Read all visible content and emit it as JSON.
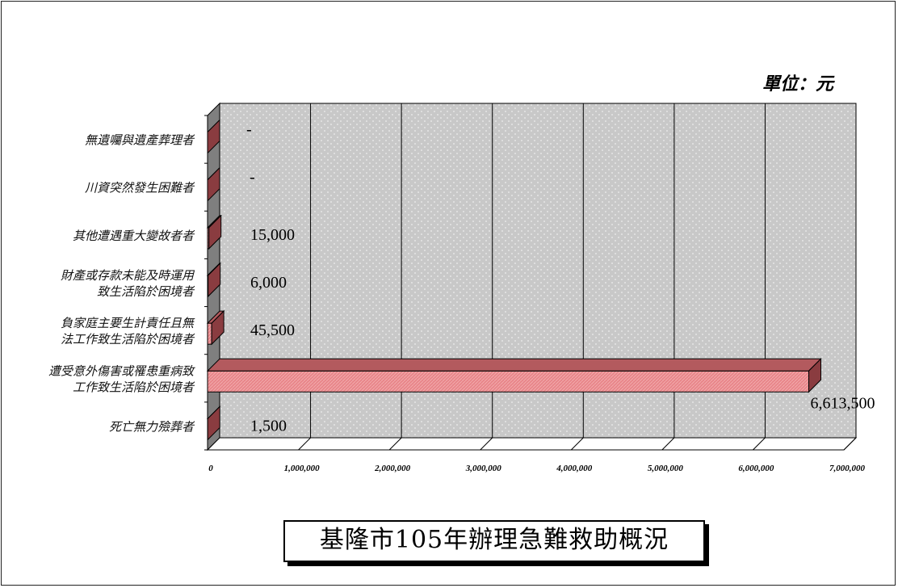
{
  "unit_label": "單位：元",
  "title": "基隆市105年辦理急難救助概況",
  "chart_data": {
    "type": "bar",
    "orientation": "horizontal",
    "three_d": true,
    "categories": [
      "無遺囑與遺產葬理者",
      "川資突然發生困難者",
      "其他遭遇重大變故者者",
      "財產或存款未能及時運用致生活陷於困境者",
      "負家庭主要生計責任且無法工作致生活陷於困境者",
      "遭受意外傷害或罹患重病致工作致生活陷於困境者",
      "死亡無力殮葬者"
    ],
    "category_label_lines": [
      [
        "無遺囑與遺產葬理者"
      ],
      [
        "川資突然發生困難者"
      ],
      [
        "其他遭遇重大變故者者"
      ],
      [
        "財產或存款未能及時運用",
        "致生活陷於困境者"
      ],
      [
        "負家庭主要生計責任且無",
        "法工作致生活陷於困境者"
      ],
      [
        "遭受意外傷害或罹患重病致",
        "工作致生活陷於困境者"
      ],
      [
        "死亡無力殮葬者"
      ]
    ],
    "values": [
      0,
      0,
      15000,
      6000,
      45500,
      6613500,
      1500
    ],
    "value_labels": [
      "-",
      "-",
      "15,000",
      "6,000",
      "45,500",
      "6,613,500",
      "1,500"
    ],
    "xlim": [
      0,
      7000000
    ],
    "x_ticks": [
      0,
      1000000,
      2000000,
      3000000,
      4000000,
      5000000,
      6000000,
      7000000
    ],
    "x_tick_labels": [
      "0",
      "1,000,000",
      "2,000,000",
      "3,000,000",
      "4,000,000",
      "5,000,000",
      "6,000,000",
      "7,000,000"
    ],
    "grid": true,
    "legend": "none",
    "colors": {
      "bar_front": "#e8868a",
      "bar_top": "#b35a5e",
      "bar_side": "#8a3c40",
      "wall": "#c8c8c8",
      "floor": "#7f7f7f"
    }
  }
}
